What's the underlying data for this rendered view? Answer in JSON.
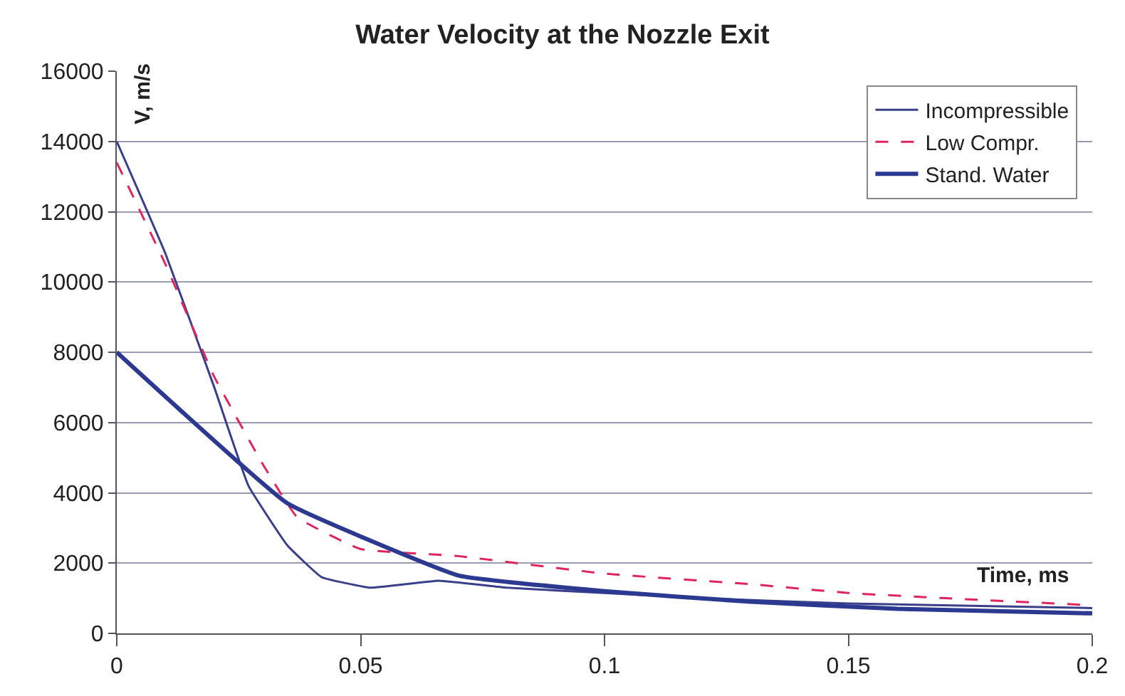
{
  "chart_data": {
    "type": "line",
    "title": "Water Velocity at the Nozzle Exit",
    "xlabel": "Time, ms",
    "ylabel": "V, m/s",
    "xlim": [
      0,
      0.2
    ],
    "xticks": [
      0,
      0.05,
      0.1,
      0.15,
      0.2
    ],
    "ylim": [
      0,
      16000
    ],
    "yticks": [
      0,
      2000,
      4000,
      6000,
      8000,
      10000,
      12000,
      14000,
      16000
    ],
    "grid": "y",
    "legend": "top right",
    "series": [
      {
        "name": "Incompressible",
        "color": "#3a3f8a",
        "line_style": "solid",
        "x": [
          0,
          0.01,
          0.02,
          0.027,
          0.035,
          0.042,
          0.052,
          0.066,
          0.08,
          0.1,
          0.12,
          0.15,
          0.2
        ],
        "values": [
          14000,
          10800,
          7000,
          4200,
          2500,
          1600,
          1300,
          1500,
          1300,
          1150,
          1000,
          850,
          720
        ]
      },
      {
        "name": "Low Compr.",
        "color": "#e0245e",
        "line_style": "dashed",
        "x": [
          0,
          0.01,
          0.02,
          0.03,
          0.037,
          0.05,
          0.07,
          0.1,
          0.13,
          0.15,
          0.17,
          0.2
        ],
        "values": [
          13400,
          10500,
          7300,
          4800,
          3300,
          2400,
          2200,
          1700,
          1400,
          1150,
          1000,
          800
        ]
      },
      {
        "name": "Stand. Water",
        "color": "#2b3990",
        "line_style": "solid",
        "x": [
          0,
          0.035,
          0.07,
          0.1,
          0.13,
          0.16,
          0.2
        ],
        "values": [
          8000,
          3700,
          1650,
          1200,
          900,
          700,
          570
        ]
      }
    ]
  }
}
